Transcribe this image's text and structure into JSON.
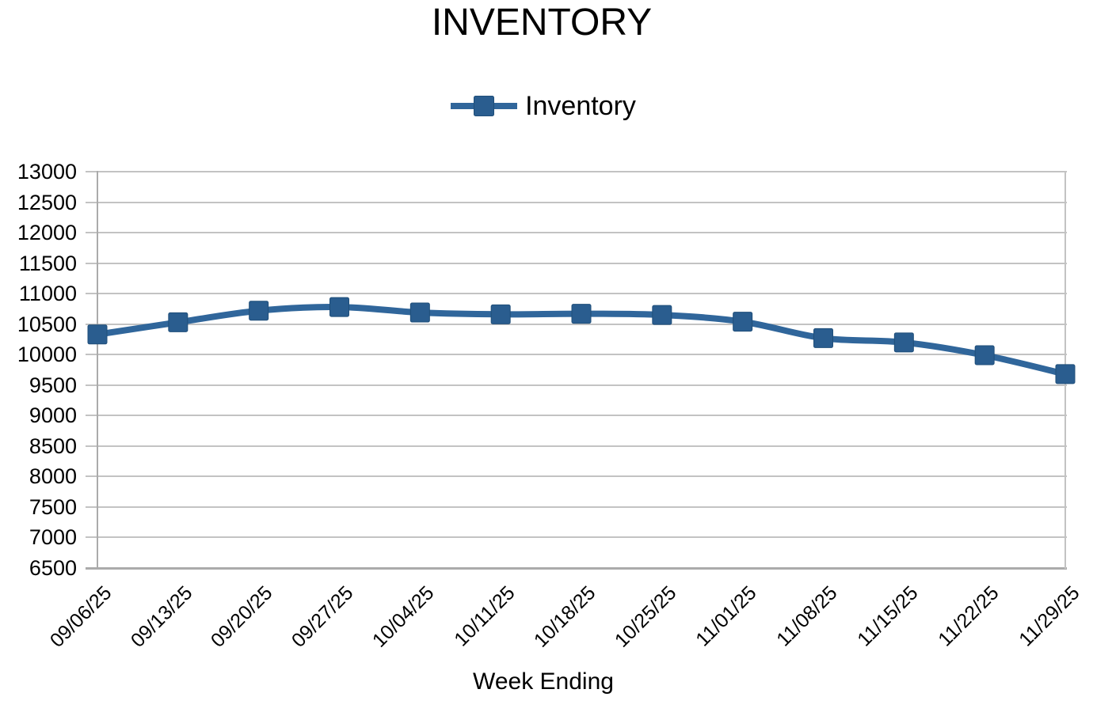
{
  "chart": {
    "title": "INVENTORY",
    "legend_label": "Inventory",
    "x_axis_title": "Week Ending"
  },
  "chart_data": {
    "type": "line",
    "title": "INVENTORY",
    "xlabel": "Week Ending",
    "ylabel": "",
    "legend": [
      "Inventory"
    ],
    "legend_position": "top-center",
    "grid": "horizontal-only",
    "marker": "square",
    "smoothed_line": true,
    "ylim": [
      6500,
      13000
    ],
    "ytick_step": 500,
    "yticks": [
      6500,
      7000,
      7500,
      8000,
      8500,
      9000,
      9500,
      10000,
      10500,
      11000,
      11500,
      12000,
      12500,
      13000
    ],
    "categories": [
      "09/06/25",
      "09/13/25",
      "09/20/25",
      "09/27/25",
      "10/04/25",
      "10/11/25",
      "10/18/25",
      "10/25/25",
      "11/01/25",
      "11/08/25",
      "11/15/25",
      "11/22/25",
      "11/29/25"
    ],
    "series": [
      {
        "name": "Inventory",
        "values": [
          10330,
          10530,
          10720,
          10780,
          10690,
          10660,
          10670,
          10650,
          10540,
          10270,
          10200,
          9990,
          9680
        ]
      }
    ],
    "colors": {
      "line": "#30669b",
      "marker": "#2a5d8f",
      "marker_border": "#1f4e79",
      "grid": "#c3c3c3",
      "axis": "#ababab",
      "text": "#000000"
    }
  }
}
